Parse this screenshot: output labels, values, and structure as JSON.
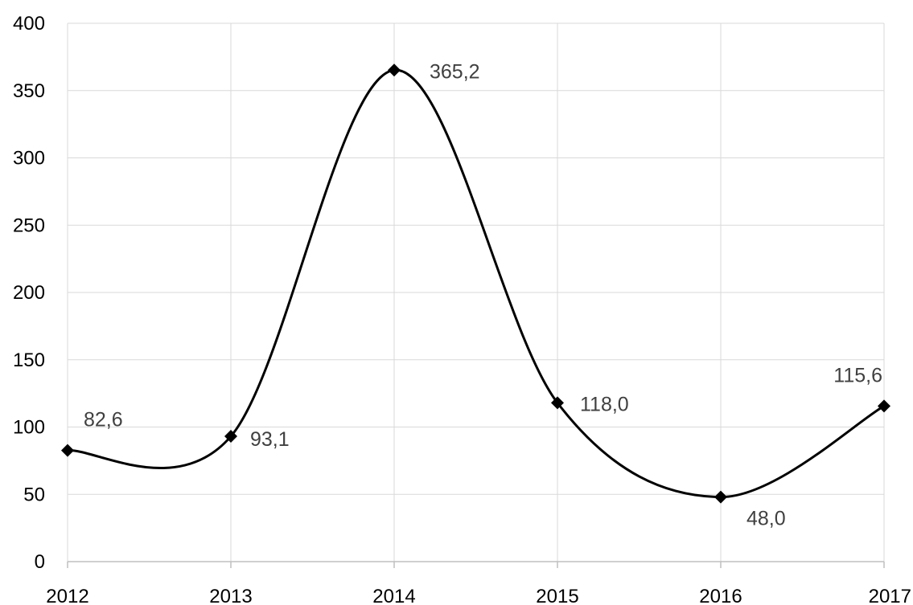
{
  "chart_data": {
    "type": "line",
    "smooth": true,
    "categories": [
      "2012",
      "2013",
      "2014",
      "2015",
      "2016",
      "2017"
    ],
    "series": [
      {
        "values": [
          82.6,
          93.1,
          365.2,
          118.0,
          48.0,
          115.6
        ],
        "data_labels": [
          "82,6",
          "93,1",
          "365,2",
          "118,0",
          "48,0",
          "115,6"
        ],
        "color": "#000000",
        "marker": "diamond"
      }
    ],
    "y_ticks": [
      "0",
      "50",
      "100",
      "150",
      "200",
      "250",
      "300",
      "350",
      "400"
    ],
    "ylim": [
      0,
      400
    ],
    "grid": true,
    "legend": "none"
  }
}
